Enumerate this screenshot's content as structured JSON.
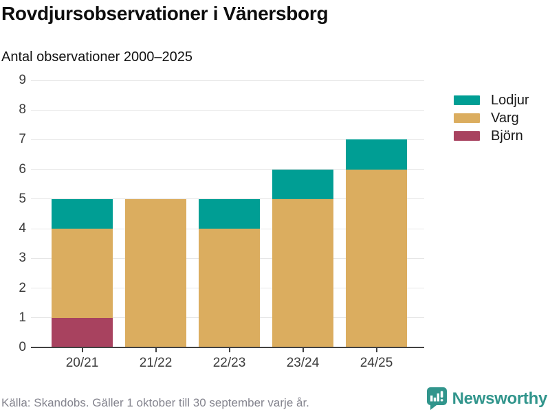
{
  "header": {
    "title": "Rovdjursobservationer i Vänersborg",
    "subtitle": "Antal observationer 2000–2025"
  },
  "chart_data": {
    "type": "bar",
    "stacked": true,
    "categories": [
      "20/21",
      "21/22",
      "22/23",
      "23/24",
      "24/25"
    ],
    "series": [
      {
        "name": "Lodjur",
        "color": "#009E94",
        "values": [
          1,
          0,
          1,
          1,
          1
        ]
      },
      {
        "name": "Varg",
        "color": "#DBAD5F",
        "values": [
          3,
          5,
          4,
          5,
          6
        ]
      },
      {
        "name": "Björn",
        "color": "#A8425F",
        "values": [
          1,
          0,
          0,
          0,
          0
        ]
      }
    ],
    "stack_order_bottom_to_top": [
      "Björn",
      "Varg",
      "Lodjur"
    ],
    "totals": [
      5,
      5,
      5,
      6,
      7
    ],
    "title": "Rovdjursobservationer i Vänersborg",
    "xlabel": "",
    "ylabel": "Antal observationer",
    "ylim": [
      0,
      9
    ],
    "yticks": [
      0,
      1,
      2,
      3,
      4,
      5,
      6,
      7,
      8,
      9
    ],
    "grid": true,
    "legend_position": "right"
  },
  "footer": {
    "source_note": "Källa: Skandobs. Gäller 1 oktober till 30 september varje år.",
    "brand": {
      "name": "Newsworthy",
      "icon": "bar-chart-speech-bubble-icon",
      "accent_color": "#31958C"
    }
  },
  "style": {
    "gridline_color": "#E6E6E6",
    "axis_color": "#424242",
    "text_color": "#3C3C3C"
  }
}
